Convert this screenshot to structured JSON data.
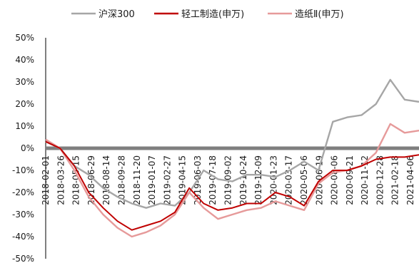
{
  "chart_data": {
    "type": "line",
    "title": "",
    "xlabel": "",
    "ylabel": "",
    "ylim": [
      -50,
      50
    ],
    "y_ticks": [
      "50%",
      "40%",
      "30%",
      "20%",
      "10%",
      "0%",
      "-10%",
      "-20%",
      "-30%",
      "-40%",
      "-50%"
    ],
    "x_ticks": [
      "2018-02-01",
      "2018-03-26",
      "2018-05-15",
      "2018-06-29",
      "2018-08-14",
      "2018-09-28",
      "2018-11-20",
      "2019-01-07",
      "2019-02-27",
      "2019-04-15",
      "2019-06-03",
      "2019-07-18",
      "2019-09-02",
      "2019-10-24",
      "2019-12-09",
      "2020-01-23",
      "2020-03-17",
      "2020-05-06",
      "2020-06-19",
      "2020-08-06",
      "2020-09-21",
      "2020-11-12",
      "2020-12-28",
      "2021-02-18",
      "2021-04-06"
    ],
    "grid": false,
    "legend_position": "top",
    "series": [
      {
        "name": "沪深300",
        "color": "#a6a6a6",
        "values": [
          3,
          0,
          -8,
          -12,
          -18,
          -22,
          -25,
          -27,
          -25,
          -26,
          -20,
          -10,
          -14,
          -15,
          -12,
          -12,
          -13,
          -10,
          -6,
          -10,
          12,
          14,
          15,
          20,
          31,
          22,
          21
        ]
      },
      {
        "name": "轻工制造(申万)",
        "color": "#c00000",
        "values": [
          3,
          0,
          -8,
          -20,
          -27,
          -33,
          -37,
          -35,
          -33,
          -29,
          -18,
          -25,
          -28,
          -27,
          -25,
          -25,
          -20,
          -22,
          -26,
          -15,
          -10,
          -10,
          -8,
          -5,
          -4,
          -4,
          -3
        ]
      },
      {
        "name": "造纸Ⅱ(申万)",
        "color": "#e69a9a",
        "values": [
          4,
          0,
          -10,
          -22,
          -30,
          -36,
          -40,
          -38,
          -35,
          -30,
          -20,
          -27,
          -32,
          -30,
          -28,
          -27,
          -24,
          -26,
          -28,
          -16,
          -11,
          -10,
          -8,
          -2,
          11,
          7,
          8
        ]
      }
    ]
  }
}
